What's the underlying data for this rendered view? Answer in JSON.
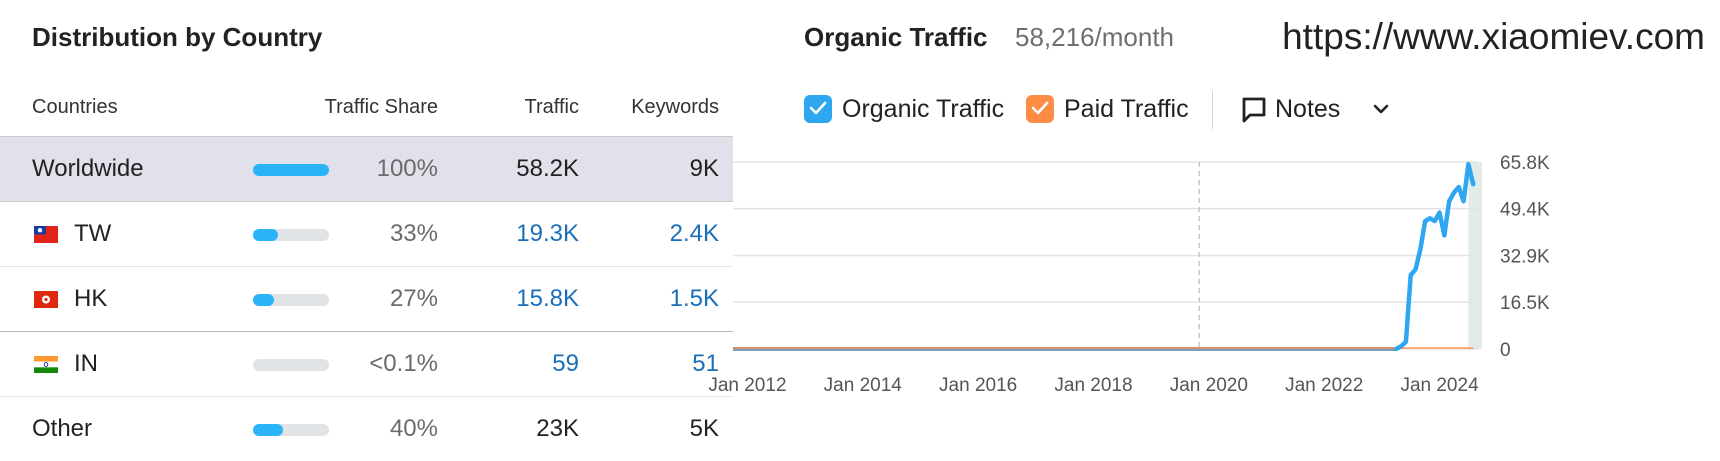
{
  "left": {
    "title": "Distribution by Country",
    "headers": {
      "country": "Countries",
      "share": "Traffic Share",
      "traffic": "Traffic",
      "keywords": "Keywords"
    },
    "rows": [
      {
        "name": "Worldwide",
        "share": "100%",
        "share_fraction": 1.0,
        "traffic": "58.2K",
        "keywords": "9K",
        "flag": ""
      },
      {
        "name": "TW",
        "share": "33%",
        "share_fraction": 0.33,
        "traffic": "19.3K",
        "keywords": "2.4K",
        "flag": "flag-tw-icon"
      },
      {
        "name": "HK",
        "share": "27%",
        "share_fraction": 0.27,
        "traffic": "15.8K",
        "keywords": "1.5K",
        "flag": "flag-hk-icon"
      },
      {
        "name": "IN",
        "share": "<0.1%",
        "share_fraction": 0.001,
        "traffic": "59",
        "keywords": "51",
        "flag": "flag-in-icon"
      },
      {
        "name": "Other",
        "share": "40%",
        "share_fraction": 0.4,
        "traffic": "23K",
        "keywords": "5K",
        "flag": ""
      }
    ],
    "colors": {
      "bar_fill": "#2bb3f7",
      "bar_track": "#e1e4e6",
      "link": "#1b6fb8",
      "worldwide_bg": "#e0e1ea"
    }
  },
  "right": {
    "title": "Organic Traffic",
    "subtitle": "58,216/month",
    "url": "https://www.xiaomiev.com",
    "legend": {
      "organic": "Organic Traffic",
      "paid": "Paid Traffic",
      "notes": "Notes"
    },
    "icons": {
      "notes": "comment-icon",
      "chevron": "chevron-down-icon",
      "check": "check-icon"
    },
    "colors": {
      "organic": "#2ea7f0",
      "paid": "#ff8c45",
      "grid": "#e3e3e3"
    }
  },
  "chart_data": {
    "type": "line",
    "title": "",
    "xlabel": "",
    "ylabel": "",
    "x_ticks": [
      "Jan 2012",
      "Jan 2014",
      "Jan 2016",
      "Jan 2018",
      "Jan 2020",
      "Jan 2022",
      "Jan 2024"
    ],
    "y_ticks": [
      "0",
      "16.5K",
      "32.9K",
      "49.4K",
      "65.8K"
    ],
    "ylim": [
      0,
      65800
    ],
    "xlim": [
      "2011-10",
      "2024-09"
    ],
    "grid": true,
    "series": [
      {
        "name": "Organic Traffic",
        "points": [
          [
            "2011-10",
            0
          ],
          [
            "2023-04",
            0
          ],
          [
            "2023-05",
            1000
          ],
          [
            "2023-06",
            2500
          ],
          [
            "2023-07",
            26000
          ],
          [
            "2023-08",
            28000
          ],
          [
            "2023-09",
            35000
          ],
          [
            "2023-10",
            45000
          ],
          [
            "2023-11",
            46000
          ],
          [
            "2023-12",
            45000
          ],
          [
            "2024-01",
            48000
          ],
          [
            "2024-02",
            40000
          ],
          [
            "2024-03",
            52000
          ],
          [
            "2024-04",
            55000
          ],
          [
            "2024-05",
            57000
          ],
          [
            "2024-06",
            52000
          ],
          [
            "2024-07",
            65000
          ],
          [
            "2024-08",
            58000
          ]
        ]
      },
      {
        "name": "Paid Traffic",
        "points": [
          [
            "2011-10",
            0
          ],
          [
            "2024-08",
            0
          ]
        ]
      }
    ]
  }
}
